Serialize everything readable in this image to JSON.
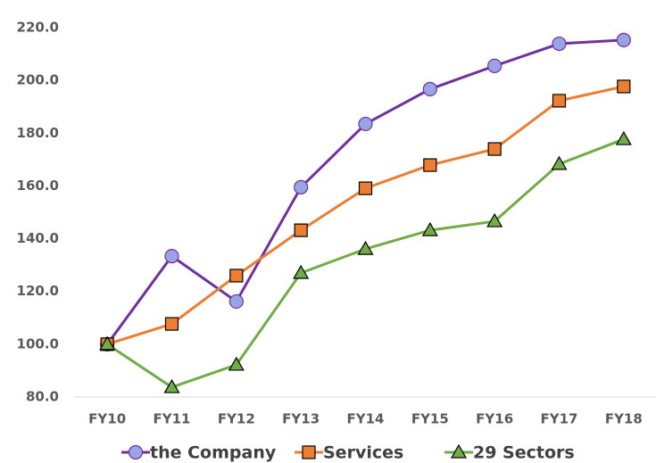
{
  "chart_data": {
    "type": "line",
    "categories": [
      "FY10",
      "FY11",
      "FY12",
      "FY13",
      "FY14",
      "FY15",
      "FY16",
      "FY17",
      "FY18"
    ],
    "series": [
      {
        "name": "the Company",
        "color": "#7030a0",
        "marker_color": "#9aa3e6",
        "marker": "circle",
        "values": [
          100,
          133.4,
          116.2,
          159.5,
          183.5,
          196.7,
          205.5,
          213.9,
          215.3
        ]
      },
      {
        "name": "Services",
        "color": "#ed7d31",
        "marker_color": "#ed7d31",
        "marker": "square",
        "values": [
          100,
          107.7,
          126,
          143.2,
          159.1,
          167.9,
          174,
          192.3,
          197.7
        ]
      },
      {
        "name": "29 Sectors",
        "color": "#70ad47",
        "marker_color": "#70ad47",
        "marker": "triangle",
        "values": [
          100,
          83.7,
          92.2,
          127,
          136.1,
          143.2,
          146.6,
          168.3,
          177.7
        ]
      }
    ],
    "ylim": [
      80,
      220
    ],
    "yticks": [
      {
        "value": 80,
        "label": "80.0"
      },
      {
        "value": 100,
        "label": "100.0"
      },
      {
        "value": 120,
        "label": "120.0"
      },
      {
        "value": 140,
        "label": "140.0"
      },
      {
        "value": 160,
        "label": "160.0"
      },
      {
        "value": 180,
        "label": "180.0"
      },
      {
        "value": 200,
        "label": "200.0"
      },
      {
        "value": 220,
        "label": "220.0"
      }
    ],
    "grid": false,
    "legend": "bottom"
  }
}
